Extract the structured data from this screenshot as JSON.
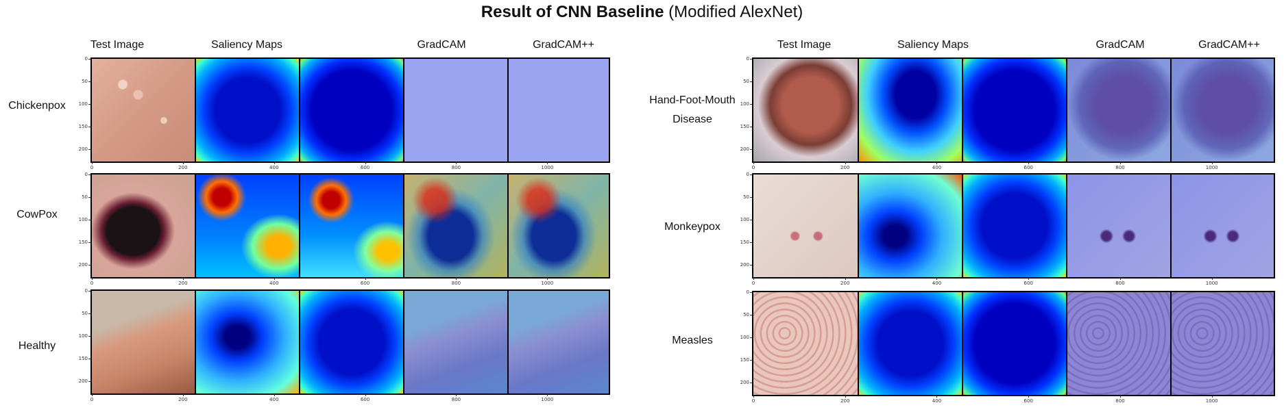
{
  "title": {
    "bold": "Result of CNN Baseline",
    "normal": "(Modified AlexNet)"
  },
  "column_headers": [
    "Test Image",
    "Saliency Maps",
    "GradCAM",
    "GradCAM++"
  ],
  "left_panel": {
    "rows": [
      {
        "label": "Chickenpox"
      },
      {
        "label": "CowPox"
      },
      {
        "label": "Healthy"
      }
    ]
  },
  "right_panel": {
    "rows": [
      {
        "label_line1": "Hand-Foot-Mouth",
        "label_line2": "Disease"
      },
      {
        "label": "Monkeypox"
      },
      {
        "label": "Measles"
      }
    ]
  },
  "x_ticks": [
    "0",
    "200",
    "400",
    "600",
    "800",
    "1000"
  ],
  "y_ticks": [
    "0",
    "50",
    "100",
    "150",
    "200"
  ]
}
